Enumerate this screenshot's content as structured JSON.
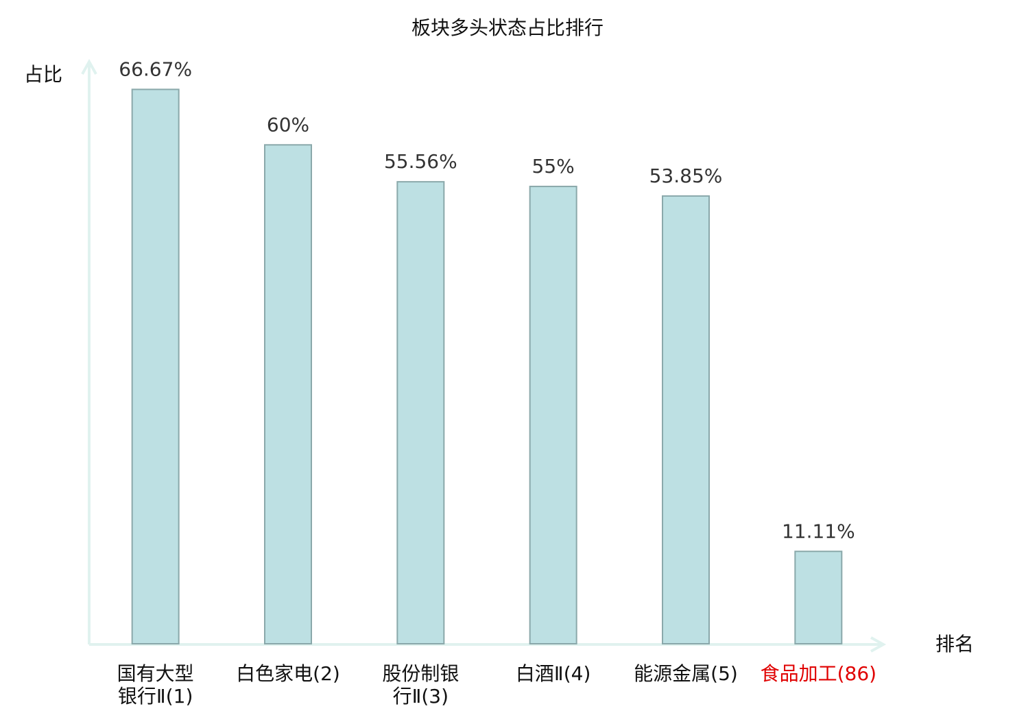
{
  "chart_data": {
    "type": "bar",
    "title": "板块多头状态占比排行",
    "y_label": "占比",
    "x_label": "排名",
    "categories": [
      "国有大型\n银行Ⅱ(1)",
      "白色家电(2)",
      "股份制银\n行Ⅱ(3)",
      "白酒Ⅱ(4)",
      "能源金属(5)",
      "食品加工(86)"
    ],
    "category_colors": [
      "#111111",
      "#111111",
      "#111111",
      "#111111",
      "#111111",
      "#e00000"
    ],
    "values": [
      66.67,
      60,
      55.56,
      55,
      53.85,
      11.11
    ],
    "value_labels": [
      "66.67%",
      "60%",
      "55.56%",
      "55%",
      "53.85%",
      "11.11%"
    ],
    "color": "#bde0e3",
    "ylim": [
      0,
      70
    ]
  }
}
